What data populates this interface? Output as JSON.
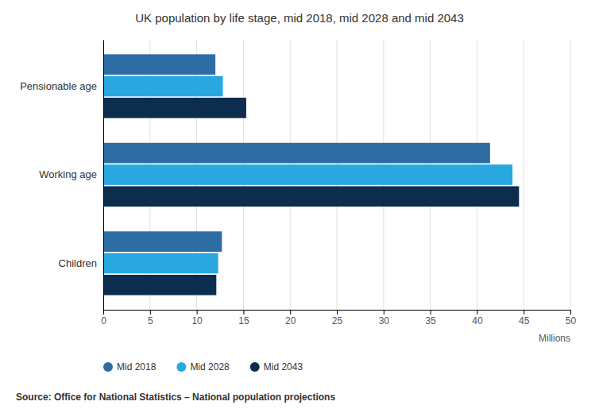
{
  "chart_data": {
    "type": "bar",
    "orientation": "horizontal",
    "title": "UK population by life stage, mid 2018, mid 2028 and mid 2043",
    "categories": [
      "Children",
      "Working age",
      "Pensionable age"
    ],
    "series": [
      {
        "name": "Mid 2018",
        "color": "#2e6da4",
        "values": [
          12.7,
          41.4,
          12.0
        ]
      },
      {
        "name": "Mid 2028",
        "color": "#29a8e0",
        "values": [
          12.3,
          43.8,
          12.8
        ]
      },
      {
        "name": "Mid 2043",
        "color": "#0d2d4e",
        "values": [
          12.1,
          44.5,
          15.3
        ]
      }
    ],
    "xlabel": "Millions",
    "xlim": [
      0,
      50
    ],
    "xticks": [
      0,
      5,
      10,
      15,
      20,
      25,
      30,
      35,
      40,
      45,
      50
    ],
    "grid": true,
    "legend": "bottom",
    "annotations": [
      "Source: Office for National Statistics – National population projections"
    ]
  }
}
